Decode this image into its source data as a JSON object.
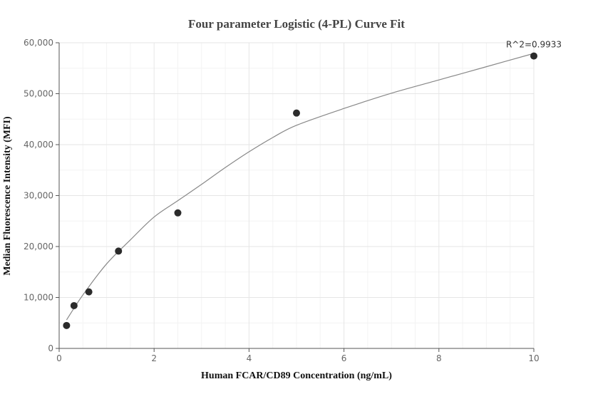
{
  "chart_data": {
    "type": "scatter",
    "title": "Four parameter Logistic (4-PL) Curve Fit",
    "xlabel": "Human FCAR/CD89 Concentration (ng/mL)",
    "ylabel": "Median Fluorescence Intensity (MFI)",
    "xlim": [
      0,
      10
    ],
    "ylim": [
      0,
      60000
    ],
    "x_ticks": [
      0,
      2,
      4,
      6,
      8,
      10
    ],
    "x_tick_labels": [
      "0",
      "2",
      "4",
      "6",
      "8",
      "10"
    ],
    "y_ticks": [
      0,
      10000,
      20000,
      30000,
      40000,
      50000,
      60000
    ],
    "y_tick_labels": [
      "0",
      "10,000",
      "20,000",
      "30,000",
      "40,000",
      "50,000",
      "60,000"
    ],
    "grid": true,
    "points": {
      "x": [
        0.156,
        0.313,
        0.625,
        1.25,
        2.5,
        5,
        10
      ],
      "y": [
        4500,
        8400,
        11100,
        19100,
        26600,
        46200,
        57400
      ]
    },
    "fit_curve": {
      "x": [
        0.156,
        0.5,
        1,
        1.5,
        2,
        2.5,
        3,
        3.5,
        4,
        4.5,
        5,
        6,
        7,
        8,
        9,
        10
      ],
      "y": [
        5600,
        10500,
        16600,
        21300,
        25800,
        29000,
        32200,
        35500,
        38600,
        41400,
        43800,
        47100,
        50100,
        52700,
        55300,
        57900
      ]
    },
    "annotation": "R^2=0.9933"
  }
}
